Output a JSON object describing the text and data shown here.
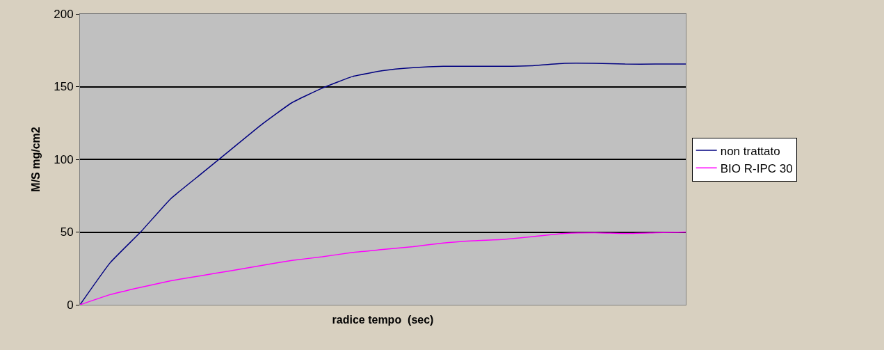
{
  "chart_data": {
    "type": "line",
    "xlabel": "radice tempo  (sec)",
    "ylabel": "M/S mg/cm2",
    "categories": [
      null,
      null,
      null,
      null,
      null,
      null,
      null,
      null,
      null,
      null,
      null,
      null,
      null,
      null,
      null,
      null,
      null,
      null,
      null,
      null,
      null
    ],
    "series": [
      {
        "name": "non trattato",
        "color": "#000080",
        "values": [
          0,
          29,
          50,
          73,
          90,
          107,
          124,
          139,
          149,
          157,
          161,
          163,
          164,
          164,
          164,
          164.5,
          166,
          166,
          165.5,
          165.5,
          165.5
        ]
      },
      {
        "name": "BIO R-IPC 30",
        "color": "#ff00ff",
        "values": [
          0,
          7,
          12,
          16.5,
          20,
          23.5,
          27,
          30.5,
          33,
          36,
          38,
          40,
          42.5,
          44,
          45,
          47,
          49,
          49.5,
          49,
          49.5,
          50
        ]
      }
    ],
    "ylim": [
      0,
      200
    ],
    "yticks": [
      0,
      50,
      100,
      150,
      200
    ],
    "grid": "y",
    "legend": "right",
    "tick_labels": "y",
    "marker": "none",
    "line_style": "solid"
  }
}
